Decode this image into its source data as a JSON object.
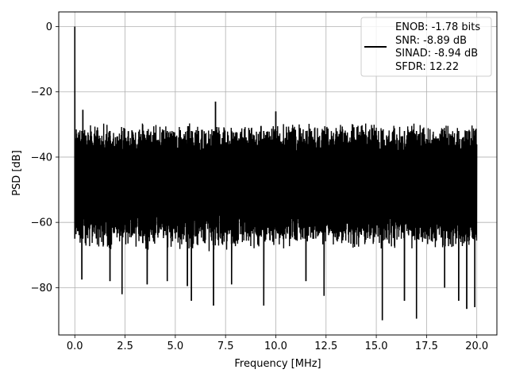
{
  "chart_data": {
    "type": "line",
    "title": "",
    "xlabel": "Frequency [MHz]",
    "ylabel": "PSD [dB]",
    "xlim": [
      -0.8,
      21.0
    ],
    "ylim": [
      -94.5,
      4.5
    ],
    "xticks": [
      0.0,
      2.5,
      5.0,
      7.5,
      10.0,
      12.5,
      15.0,
      17.5,
      20.0
    ],
    "xtick_labels": [
      "0.0",
      "2.5",
      "5.0",
      "7.5",
      "10.0",
      "12.5",
      "15.0",
      "17.5",
      "20.0"
    ],
    "yticks": [
      0,
      -20,
      -40,
      -60,
      -80
    ],
    "ytick_labels": [
      "0",
      "−20",
      "−40",
      "−60",
      "−80"
    ],
    "grid": true,
    "legend_position": "top-right",
    "series": [
      {
        "color": "#000000",
        "x_range": [
          0.0,
          20.0
        ],
        "noise_band_upper": -32,
        "noise_band_lower": -65,
        "peaks": [
          {
            "x": 0.0,
            "y": 0.0
          },
          {
            "x": 0.4,
            "y": -25.5
          },
          {
            "x": 7.0,
            "y": -23.0
          },
          {
            "x": 10.0,
            "y": -26.0
          }
        ],
        "dips": [
          {
            "x": 0.35,
            "y": -77.5
          },
          {
            "x": 1.75,
            "y": -78.0
          },
          {
            "x": 2.35,
            "y": -82.0
          },
          {
            "x": 3.6,
            "y": -79.0
          },
          {
            "x": 4.6,
            "y": -78.0
          },
          {
            "x": 5.6,
            "y": -79.5
          },
          {
            "x": 5.8,
            "y": -84.0
          },
          {
            "x": 6.9,
            "y": -85.5
          },
          {
            "x": 7.8,
            "y": -79.0
          },
          {
            "x": 9.4,
            "y": -85.5
          },
          {
            "x": 11.5,
            "y": -78.0
          },
          {
            "x": 12.4,
            "y": -82.5
          },
          {
            "x": 15.3,
            "y": -90.0
          },
          {
            "x": 16.4,
            "y": -84.0
          },
          {
            "x": 17.0,
            "y": -89.5
          },
          {
            "x": 18.4,
            "y": -80.0
          },
          {
            "x": 19.1,
            "y": -84.0
          },
          {
            "x": 19.5,
            "y": -86.5
          },
          {
            "x": 19.9,
            "y": -86.0
          }
        ]
      }
    ],
    "legend": {
      "lines": [
        "ENOB: -1.78 bits",
        "SNR: -8.89 dB",
        "SINAD: -8.94 dB",
        "SFDR: 12.22"
      ]
    }
  }
}
